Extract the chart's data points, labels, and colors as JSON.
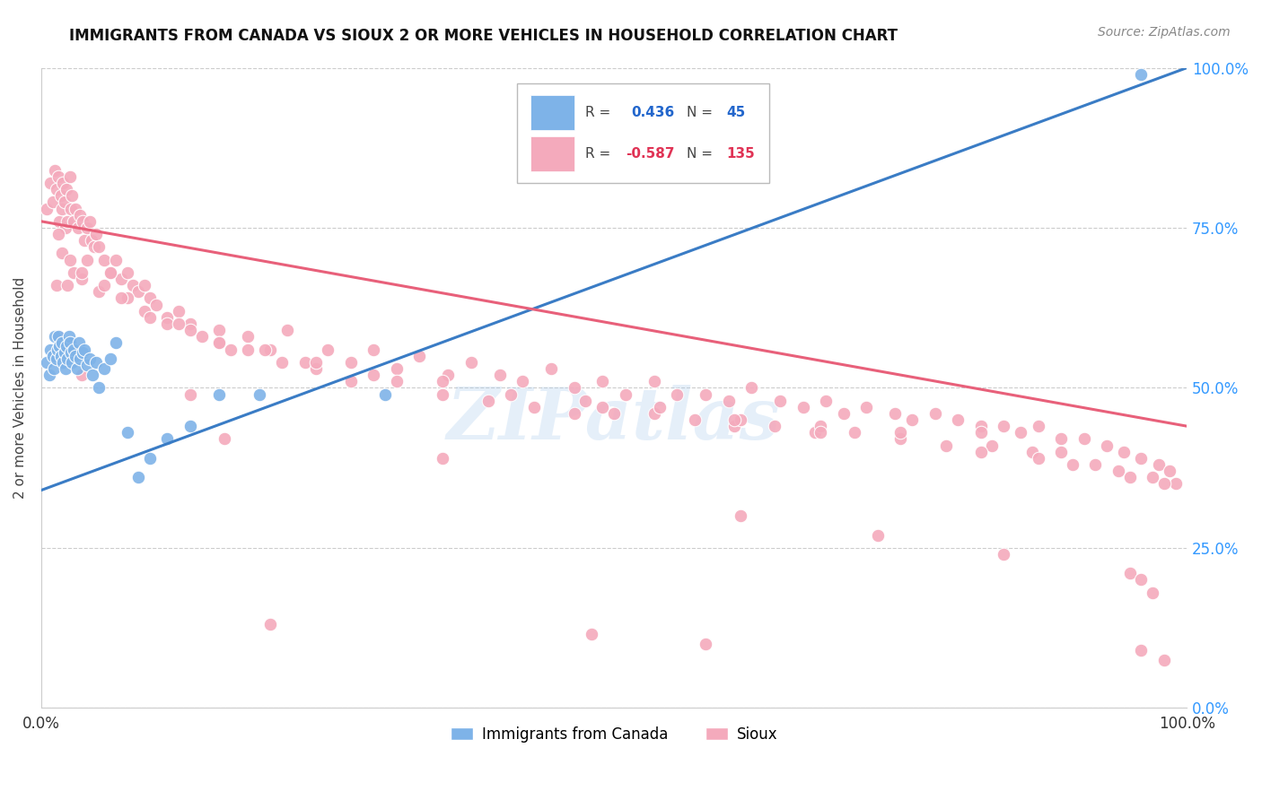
{
  "title": "IMMIGRANTS FROM CANADA VS SIOUX 2 OR MORE VEHICLES IN HOUSEHOLD CORRELATION CHART",
  "source": "Source: ZipAtlas.com",
  "ylabel": "2 or more Vehicles in Household",
  "legend1_label": "Immigrants from Canada",
  "legend2_label": "Sioux",
  "ytick_labels": [
    "0.0%",
    "25.0%",
    "50.0%",
    "75.0%",
    "100.0%"
  ],
  "ytick_vals": [
    0.0,
    0.25,
    0.5,
    0.75,
    1.0
  ],
  "xlim": [
    0,
    1
  ],
  "ylim": [
    0,
    1
  ],
  "blue_color": "#7EB3E8",
  "pink_color": "#F4AABC",
  "blue_line_color": "#3A7CC5",
  "pink_line_color": "#E8607A",
  "watermark": "ZIPatlas",
  "blue_r": 0.436,
  "blue_n": 45,
  "pink_r": -0.587,
  "pink_n": 135,
  "blue_line_x0": 0.0,
  "blue_line_y0": 0.34,
  "blue_line_x1": 1.0,
  "blue_line_y1": 1.0,
  "pink_line_x0": 0.0,
  "pink_line_y0": 0.76,
  "pink_line_x1": 1.0,
  "pink_line_y1": 0.44,
  "blue_points_x": [
    0.005,
    0.007,
    0.008,
    0.01,
    0.011,
    0.012,
    0.013,
    0.014,
    0.015,
    0.016,
    0.017,
    0.018,
    0.019,
    0.02,
    0.021,
    0.022,
    0.023,
    0.024,
    0.025,
    0.026,
    0.027,
    0.028,
    0.03,
    0.031,
    0.033,
    0.034,
    0.036,
    0.038,
    0.04,
    0.042,
    0.045,
    0.048,
    0.05,
    0.055,
    0.06,
    0.065,
    0.075,
    0.085,
    0.095,
    0.11,
    0.13,
    0.155,
    0.19,
    0.3,
    0.96
  ],
  "blue_points_y": [
    0.54,
    0.52,
    0.56,
    0.55,
    0.53,
    0.58,
    0.545,
    0.56,
    0.58,
    0.565,
    0.55,
    0.57,
    0.54,
    0.555,
    0.53,
    0.565,
    0.545,
    0.58,
    0.57,
    0.555,
    0.54,
    0.56,
    0.55,
    0.53,
    0.57,
    0.545,
    0.555,
    0.56,
    0.535,
    0.545,
    0.52,
    0.54,
    0.5,
    0.53,
    0.545,
    0.57,
    0.43,
    0.36,
    0.39,
    0.42,
    0.44,
    0.49,
    0.49,
    0.49,
    0.99
  ],
  "pink_points_x": [
    0.005,
    0.008,
    0.01,
    0.012,
    0.013,
    0.015,
    0.016,
    0.017,
    0.018,
    0.019,
    0.02,
    0.021,
    0.022,
    0.023,
    0.025,
    0.026,
    0.027,
    0.028,
    0.03,
    0.032,
    0.034,
    0.036,
    0.038,
    0.04,
    0.042,
    0.044,
    0.046,
    0.048,
    0.05,
    0.055,
    0.06,
    0.065,
    0.07,
    0.075,
    0.08,
    0.085,
    0.09,
    0.095,
    0.1,
    0.11,
    0.12,
    0.13,
    0.14,
    0.155,
    0.165,
    0.18,
    0.2,
    0.215,
    0.23,
    0.25,
    0.27,
    0.29,
    0.31,
    0.33,
    0.355,
    0.375,
    0.4,
    0.42,
    0.445,
    0.465,
    0.49,
    0.51,
    0.535,
    0.555,
    0.58,
    0.6,
    0.62,
    0.645,
    0.665,
    0.685,
    0.7,
    0.72,
    0.745,
    0.76,
    0.78,
    0.8,
    0.82,
    0.84,
    0.855,
    0.87,
    0.89,
    0.91,
    0.93,
    0.945,
    0.96,
    0.975,
    0.985,
    0.013,
    0.018,
    0.023,
    0.028,
    0.035,
    0.04,
    0.05,
    0.06,
    0.075,
    0.09,
    0.11,
    0.13,
    0.155,
    0.18,
    0.21,
    0.24,
    0.27,
    0.31,
    0.35,
    0.39,
    0.43,
    0.465,
    0.5,
    0.535,
    0.57,
    0.605,
    0.64,
    0.675,
    0.71,
    0.75,
    0.79,
    0.83,
    0.865,
    0.9,
    0.94,
    0.97,
    0.99,
    0.015,
    0.025,
    0.035,
    0.055,
    0.07,
    0.095,
    0.12,
    0.155,
    0.195,
    0.24,
    0.29,
    0.35,
    0.41,
    0.475,
    0.54,
    0.61,
    0.68,
    0.75,
    0.82,
    0.89,
    0.015,
    0.025,
    0.13,
    0.35,
    0.61,
    0.73,
    0.84,
    0.95,
    0.96,
    0.97,
    0.035,
    0.16,
    0.49,
    0.605,
    0.68,
    0.82,
    0.87,
    0.92,
    0.95,
    0.98,
    0.2,
    0.48,
    0.58,
    0.96,
    0.98
  ],
  "pink_points_y": [
    0.78,
    0.82,
    0.79,
    0.84,
    0.81,
    0.83,
    0.76,
    0.8,
    0.78,
    0.82,
    0.79,
    0.75,
    0.81,
    0.76,
    0.83,
    0.78,
    0.8,
    0.76,
    0.78,
    0.75,
    0.77,
    0.76,
    0.73,
    0.75,
    0.76,
    0.73,
    0.72,
    0.74,
    0.72,
    0.7,
    0.68,
    0.7,
    0.67,
    0.68,
    0.66,
    0.65,
    0.66,
    0.64,
    0.63,
    0.61,
    0.62,
    0.6,
    0.58,
    0.59,
    0.56,
    0.58,
    0.56,
    0.59,
    0.54,
    0.56,
    0.54,
    0.56,
    0.53,
    0.55,
    0.52,
    0.54,
    0.52,
    0.51,
    0.53,
    0.5,
    0.51,
    0.49,
    0.51,
    0.49,
    0.49,
    0.48,
    0.5,
    0.48,
    0.47,
    0.48,
    0.46,
    0.47,
    0.46,
    0.45,
    0.46,
    0.45,
    0.44,
    0.44,
    0.43,
    0.44,
    0.42,
    0.42,
    0.41,
    0.4,
    0.39,
    0.38,
    0.37,
    0.66,
    0.71,
    0.66,
    0.68,
    0.67,
    0.7,
    0.65,
    0.68,
    0.64,
    0.62,
    0.6,
    0.59,
    0.57,
    0.56,
    0.54,
    0.53,
    0.51,
    0.51,
    0.49,
    0.48,
    0.47,
    0.46,
    0.46,
    0.46,
    0.45,
    0.44,
    0.44,
    0.43,
    0.43,
    0.42,
    0.41,
    0.41,
    0.4,
    0.38,
    0.37,
    0.36,
    0.35,
    0.74,
    0.7,
    0.68,
    0.66,
    0.64,
    0.61,
    0.6,
    0.57,
    0.56,
    0.54,
    0.52,
    0.51,
    0.49,
    0.48,
    0.47,
    0.45,
    0.44,
    0.43,
    0.43,
    0.4,
    0.58,
    0.56,
    0.49,
    0.39,
    0.3,
    0.27,
    0.24,
    0.21,
    0.2,
    0.18,
    0.52,
    0.42,
    0.47,
    0.45,
    0.43,
    0.4,
    0.39,
    0.38,
    0.36,
    0.35,
    0.13,
    0.115,
    0.1,
    0.09,
    0.075
  ]
}
